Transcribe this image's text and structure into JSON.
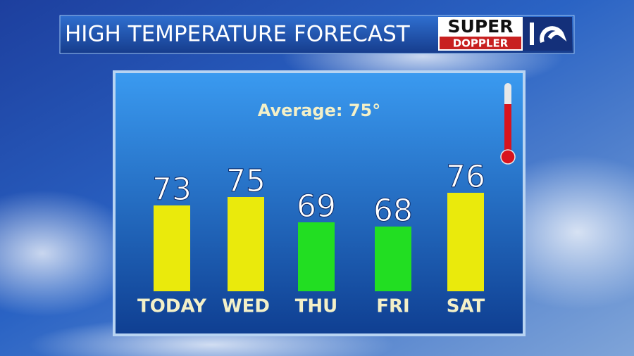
{
  "chart_data": {
    "type": "bar",
    "title": "HIGH TEMPERATURE FORECAST",
    "annotation": "Average: 75°",
    "categories": [
      "TODAY",
      "WED",
      "THU",
      "FRI",
      "SAT"
    ],
    "values": [
      73,
      75,
      69,
      68,
      76
    ],
    "colors": [
      "#eaea0c",
      "#eaea0c",
      "#22de22",
      "#22de22",
      "#eaea0c"
    ]
  },
  "logo": {
    "top": "SUPER",
    "bottom": "DOPPLER"
  }
}
